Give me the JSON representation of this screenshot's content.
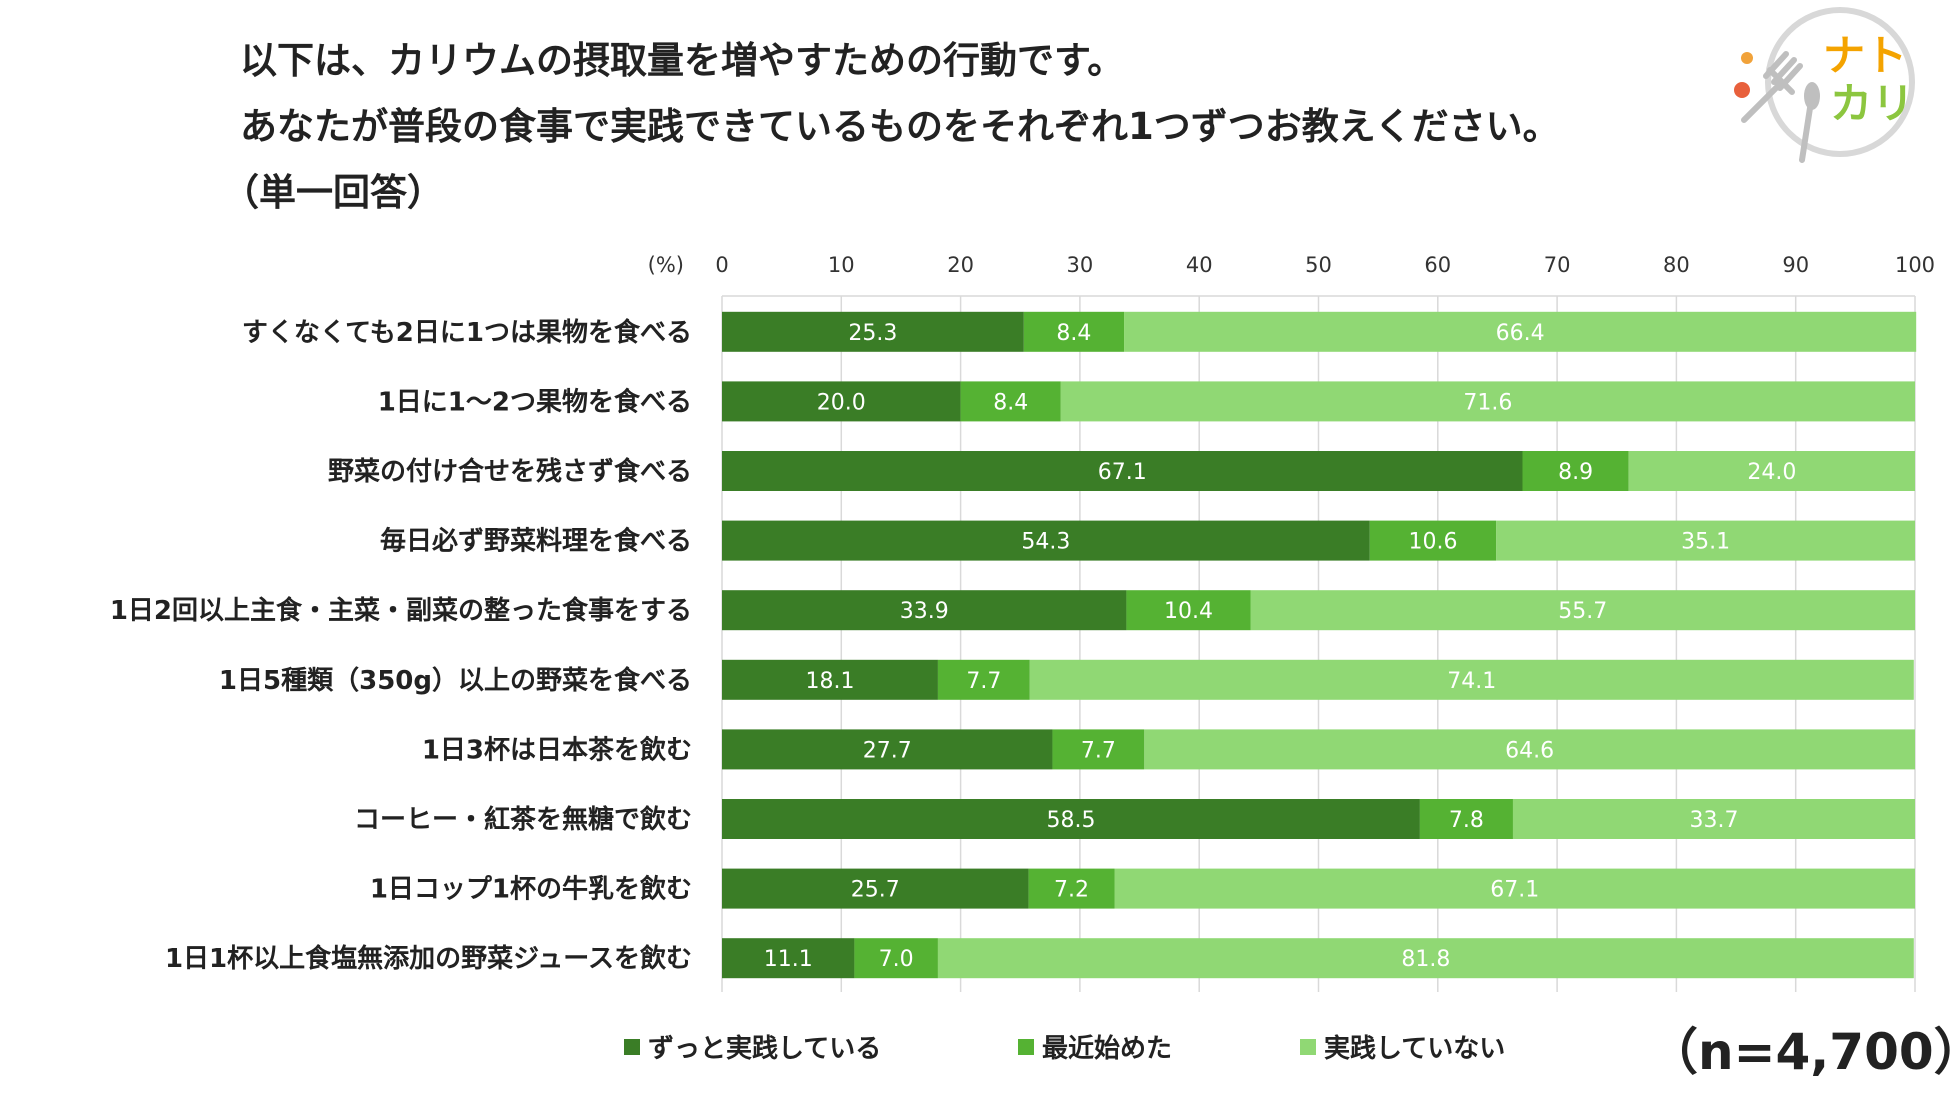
{
  "title": {
    "line1": "以下は、カリウムの摂取量を増やすための行動です。",
    "line2": "あなたが普段の食事で実践できているものをそれぞれ1つずつお教えください。",
    "line3": "（単一回答）"
  },
  "logo": {
    "line1": "ナト",
    "line2": "カリ"
  },
  "sample_size": "（n=4,700）",
  "colors": {
    "always": "#3a7d26",
    "recent": "#55b233",
    "not": "#90d874",
    "grid": "#d9d9d9",
    "text_on_bar": "#ffffff"
  },
  "chart_data": {
    "type": "bar",
    "orientation": "horizontal",
    "stacked": true,
    "unit_label": "(%)",
    "xlim": [
      0,
      100
    ],
    "xticks": [
      0,
      10,
      20,
      30,
      40,
      50,
      60,
      70,
      80,
      90,
      100
    ],
    "categories": [
      "すくなくても2日に1つは果物を食べる",
      "1日に1～2つ果物を食べる",
      "野菜の付け合せを残さず食べる",
      "毎日必ず野菜料理を食べる",
      "1日2回以上主食・主菜・副菜の整った食事をする",
      "1日5種類（350g）以上の野菜を食べる",
      "1日3杯は日本茶を飲む",
      "コーヒー・紅茶を無糖で飲む",
      "1日コップ1杯の牛乳を飲む",
      "1日1杯以上食塩無添加の野菜ジュースを飲む"
    ],
    "series": [
      {
        "name": "ずっと実践している",
        "color": "#3a7d26",
        "values": [
          25.3,
          20.0,
          67.1,
          54.3,
          33.9,
          18.1,
          27.7,
          58.5,
          25.7,
          11.1
        ]
      },
      {
        "name": "最近始めた",
        "color": "#55b233",
        "values": [
          8.4,
          8.4,
          8.9,
          10.6,
          10.4,
          7.7,
          7.7,
          7.8,
          7.2,
          7.0
        ]
      },
      {
        "name": "実践していない",
        "color": "#90d874",
        "values": [
          66.4,
          71.6,
          24.0,
          35.1,
          55.7,
          74.1,
          64.6,
          33.7,
          67.1,
          81.8
        ]
      }
    ],
    "legend_position": "bottom"
  }
}
